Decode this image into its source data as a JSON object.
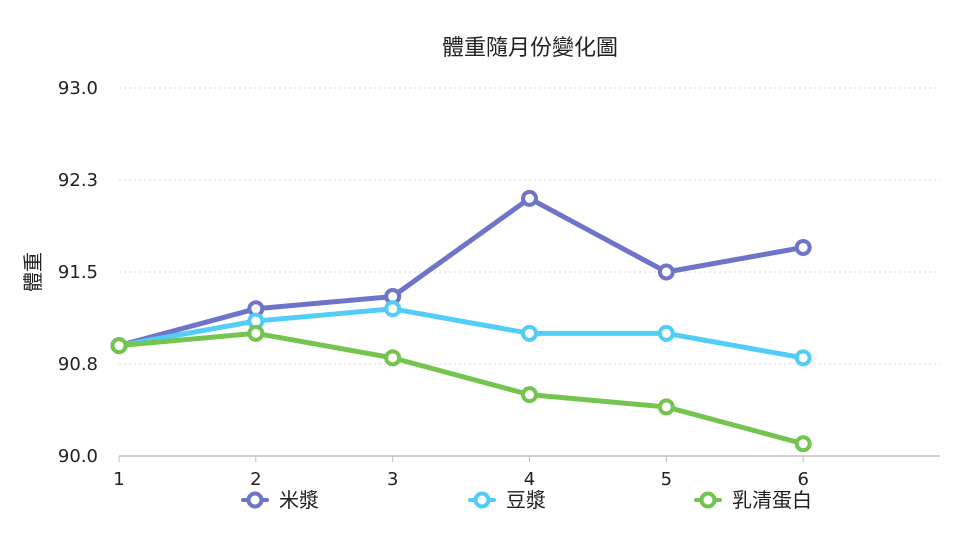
{
  "chart_data": {
    "type": "line",
    "title": "體重隨月份變化圖",
    "xlabel": "",
    "ylabel": "體重",
    "x": [
      1,
      2,
      3,
      4,
      5,
      6
    ],
    "x_tick_labels": [
      "1",
      "2",
      "3",
      "4",
      "5",
      "6"
    ],
    "xlim": [
      1,
      7
    ],
    "ylim": [
      90.0,
      93.0
    ],
    "y_tick_labels": [
      "90.0",
      "90.8",
      "91.5",
      "92.3",
      "93.0"
    ],
    "y_ticks": [
      90.0,
      90.75,
      91.5,
      92.25,
      93.0
    ],
    "grid": true,
    "legend_position": "bottom",
    "series": [
      {
        "name": "米漿",
        "color": "#6f74c8",
        "values": [
          90.9,
          91.2,
          91.3,
          92.1,
          91.5,
          91.7
        ]
      },
      {
        "name": "豆漿",
        "color": "#51cdf7",
        "values": [
          90.9,
          91.1,
          91.2,
          91.0,
          91.0,
          90.8
        ]
      },
      {
        "name": "乳清蛋白",
        "color": "#74c44f",
        "values": [
          90.9,
          91.0,
          90.8,
          90.5,
          90.4,
          90.1
        ]
      }
    ]
  }
}
